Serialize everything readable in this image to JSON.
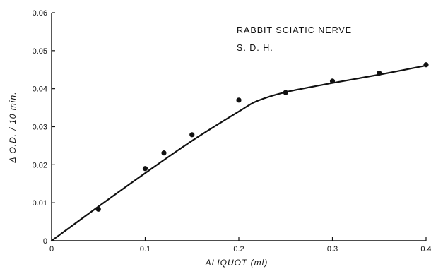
{
  "chart_data": {
    "type": "scatter",
    "xlabel": "ALIQUOT (ml)",
    "ylabel": "Δ O.D. / 10 min.",
    "annotations": [
      "RABBIT SCIATIC NERVE",
      "S. D. H."
    ],
    "xlim": [
      0,
      0.4
    ],
    "ylim": [
      0,
      0.06
    ],
    "x_ticks": [
      0,
      0.1,
      0.2,
      0.3,
      0.4
    ],
    "x_tick_labels": [
      "0",
      "0.1",
      "0.2",
      "0.3",
      "0.4"
    ],
    "y_ticks": [
      0,
      0.01,
      0.02,
      0.03,
      0.04,
      0.05,
      0.06
    ],
    "y_tick_labels": [
      "0",
      "0.01",
      "0.02",
      "0.03",
      "0.04",
      "0.05",
      "0.06"
    ],
    "grid": false,
    "points": [
      {
        "x": 0.05,
        "y": 0.0083
      },
      {
        "x": 0.1,
        "y": 0.019
      },
      {
        "x": 0.12,
        "y": 0.0231
      },
      {
        "x": 0.15,
        "y": 0.0279
      },
      {
        "x": 0.2,
        "y": 0.037
      },
      {
        "x": 0.25,
        "y": 0.039
      },
      {
        "x": 0.3,
        "y": 0.042
      },
      {
        "x": 0.35,
        "y": 0.0441
      },
      {
        "x": 0.4,
        "y": 0.0463
      }
    ],
    "fit_curve": [
      {
        "x": 0.0,
        "y": 0.0
      },
      {
        "x": 0.05,
        "y": 0.009
      },
      {
        "x": 0.1,
        "y": 0.0178
      },
      {
        "x": 0.15,
        "y": 0.0263
      },
      {
        "x": 0.2,
        "y": 0.034
      },
      {
        "x": 0.22,
        "y": 0.0368
      },
      {
        "x": 0.25,
        "y": 0.0391
      },
      {
        "x": 0.3,
        "y": 0.0415
      },
      {
        "x": 0.35,
        "y": 0.0437
      },
      {
        "x": 0.4,
        "y": 0.0461
      }
    ]
  }
}
